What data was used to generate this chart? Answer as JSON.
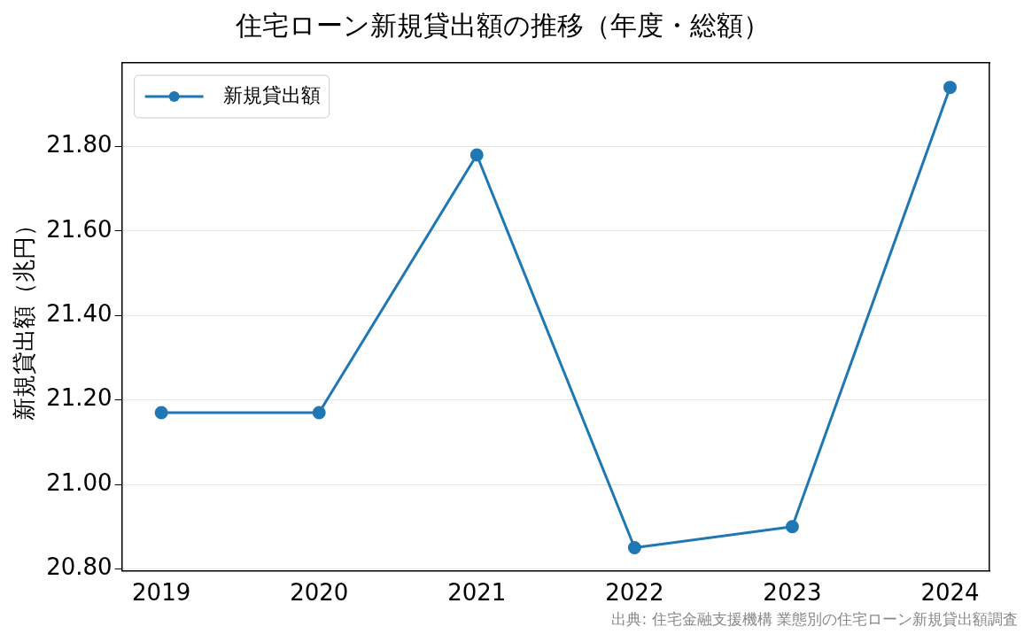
{
  "chart_data": {
    "type": "line",
    "title": "住宅ローン新規貸出額の推移（年度・総額）",
    "ylabel": "新規貸出額（兆円）",
    "x": [
      2019,
      2020,
      2021,
      2022,
      2023,
      2024
    ],
    "series": [
      {
        "name": "新規貸出額",
        "color": "#1f77b4",
        "values": [
          21.17,
          21.17,
          21.78,
          20.85,
          20.9,
          21.94
        ]
      }
    ],
    "xlim": [
      2018.75,
      2024.25
    ],
    "xticks": [
      2019,
      2020,
      2021,
      2022,
      2023,
      2024
    ],
    "ylim": [
      20.795,
      21.998
    ],
    "yticks": [
      {
        "value": 20.8,
        "label": "20.80"
      },
      {
        "value": 21.0,
        "label": "21.00"
      },
      {
        "value": 21.2,
        "label": "21.20"
      },
      {
        "value": 21.4,
        "label": "21.40"
      },
      {
        "value": 21.6,
        "label": "21.60"
      },
      {
        "value": 21.8,
        "label": "21.80"
      }
    ],
    "grid": "y",
    "legend": "top left",
    "marker": "circle",
    "line_style": "solid",
    "annotations": [
      "出典: 住宅金融支援機構 業態別の住宅ローン新規貸出額調査"
    ]
  }
}
